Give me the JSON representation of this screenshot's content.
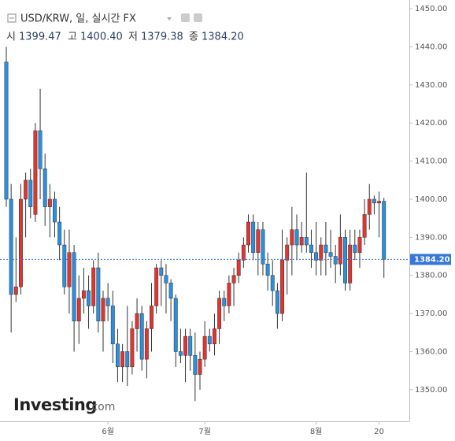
{
  "header": {
    "title": "USD/KRW, 일, 실시간 FX",
    "ohlc": [
      {
        "name": "시",
        "value": "1399.47"
      },
      {
        "name": "고",
        "value": "1400.40"
      },
      {
        "name": "저",
        "value": "1379.38"
      },
      {
        "name": "종",
        "value": "1384.20"
      }
    ]
  },
  "watermark": {
    "brand": "Investing",
    "suffix": ".com"
  },
  "chart_data": {
    "type": "candlestick",
    "categories": [
      null,
      null,
      null,
      null,
      null,
      null,
      null,
      null,
      null,
      null,
      null,
      null,
      null,
      null,
      null,
      null,
      null,
      null,
      null,
      null,
      null,
      "6월",
      null,
      null,
      null,
      null,
      null,
      null,
      null,
      null,
      null,
      null,
      null,
      null,
      null,
      null,
      null,
      null,
      null,
      null,
      null,
      "7월",
      null,
      null,
      null,
      null,
      null,
      null,
      null,
      null,
      null,
      null,
      null,
      null,
      null,
      null,
      null,
      null,
      null,
      null,
      null,
      null,
      null,
      null,
      "8월",
      null,
      null,
      null,
      null,
      null,
      null,
      null,
      null,
      null,
      null,
      null,
      null,
      "20",
      null
    ],
    "open": [
      1436,
      1400,
      1375,
      1377,
      1400,
      1405,
      1396,
      1418,
      1408,
      1398,
      1400,
      1394,
      1388,
      1377,
      1386,
      1368,
      1374,
      1376,
      1372,
      1382,
      1368,
      1374,
      1372,
      1362,
      1356,
      1360,
      1356,
      1366,
      1370,
      1358,
      1366,
      1372,
      1382,
      1380,
      1378,
      1374,
      1360,
      1359,
      1364,
      1359,
      1354,
      1358,
      1364,
      1362,
      1366,
      1374,
      1372,
      1378,
      1380,
      1384,
      1388,
      1394,
      1386,
      1392,
      1383,
      1380,
      1376,
      1370,
      1384,
      1388,
      1392,
      1388,
      1390,
      1388,
      1386,
      1384,
      1388,
      1386,
      1385,
      1383,
      1390,
      1378,
      1388,
      1386,
      1390,
      1396,
      1400,
      1399,
      1399.47
    ],
    "high": [
      1440,
      1404,
      1390,
      1404,
      1407,
      1408,
      1420,
      1429,
      1412,
      1404,
      1402,
      1398,
      1392,
      1392,
      1388,
      1380,
      1382,
      1380,
      1384,
      1386,
      1376,
      1378,
      1376,
      1366,
      1362,
      1372,
      1368,
      1374,
      1372,
      1368,
      1378,
      1383,
      1384,
      1383,
      1379,
      1375,
      1366,
      1366,
      1366,
      1365,
      1360,
      1368,
      1366,
      1370,
      1376,
      1376,
      1380,
      1382,
      1386,
      1390,
      1396,
      1396,
      1394,
      1394,
      1386,
      1384,
      1378,
      1392,
      1390,
      1398,
      1396,
      1394,
      1407,
      1392,
      1394,
      1390,
      1394,
      1392,
      1388,
      1396,
      1392,
      1392,
      1392,
      1392,
      1400,
      1404,
      1401,
      1402,
      1400.4
    ],
    "low": [
      1398,
      1365,
      1373,
      1375,
      1390,
      1395,
      1394,
      1400,
      1393,
      1390,
      1390,
      1384,
      1375,
      1370,
      1360,
      1362,
      1370,
      1366,
      1370,
      1365,
      1360,
      1368,
      1357,
      1352,
      1352,
      1351,
      1354,
      1360,
      1355,
      1353,
      1360,
      1370,
      1372,
      1370,
      1368,
      1356,
      1357,
      1352,
      1355,
      1347,
      1350,
      1356,
      1360,
      1359,
      1362,
      1368,
      1370,
      1372,
      1378,
      1382,
      1386,
      1384,
      1380,
      1380,
      1376,
      1372,
      1366,
      1368,
      1375,
      1380,
      1384,
      1386,
      1386,
      1382,
      1380,
      1380,
      1380,
      1382,
      1378,
      1380,
      1376,
      1376,
      1384,
      1382,
      1388,
      1392,
      1396,
      1390,
      1379.38
    ],
    "close": [
      1400,
      1375,
      1377,
      1400,
      1405,
      1398,
      1418,
      1408,
      1398,
      1400,
      1394,
      1388,
      1377,
      1386,
      1368,
      1374,
      1376,
      1372,
      1382,
      1368,
      1374,
      1372,
      1362,
      1356,
      1360,
      1356,
      1366,
      1370,
      1358,
      1366,
      1372,
      1382,
      1380,
      1378,
      1374,
      1360,
      1359,
      1364,
      1359,
      1354,
      1358,
      1364,
      1362,
      1366,
      1374,
      1372,
      1378,
      1380,
      1384,
      1388,
      1394,
      1386,
      1392,
      1383,
      1380,
      1376,
      1370,
      1384,
      1388,
      1392,
      1388,
      1390,
      1388,
      1386,
      1384,
      1388,
      1386,
      1385,
      1383,
      1390,
      1378,
      1388,
      1386,
      1390,
      1396,
      1400,
      1399,
      1399.47,
      1384.2
    ],
    "up_color": "#e3342f",
    "down_color": "#2a8fdf",
    "last_price": {
      "value": 1384.2,
      "label": "1384.20"
    },
    "last_price_color": "#3778d6",
    "ylim": [
      1341.7,
      1452.3
    ],
    "yticks": [
      {
        "value": 1350,
        "label": "1350.00"
      },
      {
        "value": 1360,
        "label": "1360.00"
      },
      {
        "value": 1370,
        "label": "1370.00"
      },
      {
        "value": 1380,
        "label": "1380.00"
      },
      {
        "value": 1390,
        "label": "1390.00"
      },
      {
        "value": 1400,
        "label": "1400.00"
      },
      {
        "value": 1410,
        "label": "1410.00"
      },
      {
        "value": 1420,
        "label": "1420.00"
      },
      {
        "value": 1430,
        "label": "1430.00"
      },
      {
        "value": 1440,
        "label": "1440.00"
      },
      {
        "value": 1450,
        "label": "1450.00"
      }
    ],
    "grid": false
  }
}
